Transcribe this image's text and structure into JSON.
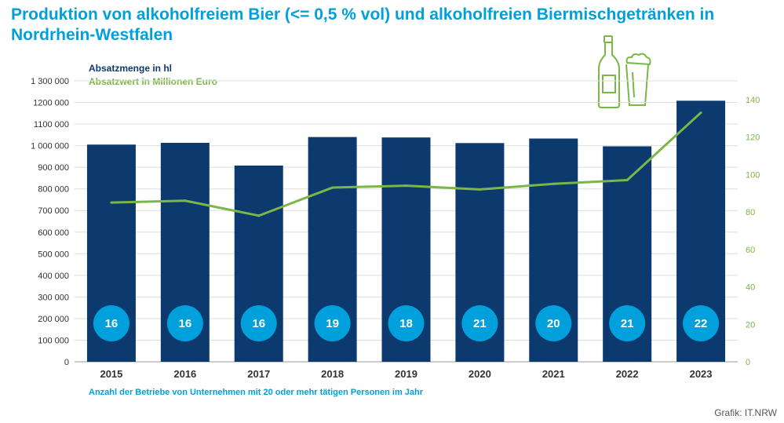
{
  "title": "Produktion von alkoholfreiem Bier (<= 0,5 % vol) und alkoholfreien Biermischgetränken in Nordrhein-Westfalen",
  "legend": {
    "volume": "Absatzmenge in hl",
    "value": "Absatzwert in Millionen Euro"
  },
  "footnote": "Anzahl der Betriebe von Unternehmen mit 20 oder mehr tätigen Personen im Jahr",
  "source": "Grafik: IT.NRW",
  "icons": [
    "bottle-icon",
    "beer-glass-icon"
  ],
  "colors": {
    "bar": "#0c3a6e",
    "line": "#7ab648",
    "badge": "#00a0dc",
    "title": "#00a0dc"
  },
  "chart_data": {
    "type": "bar",
    "categories": [
      "2015",
      "2016",
      "2017",
      "2018",
      "2019",
      "2020",
      "2021",
      "2022",
      "2023"
    ],
    "series": [
      {
        "name": "Absatzmenge in hl",
        "type": "bar",
        "axis": "left",
        "values": [
          1005000,
          1013000,
          908000,
          1040000,
          1038000,
          1012000,
          1033000,
          997000,
          1208000
        ]
      },
      {
        "name": "Absatzwert in Millionen Euro",
        "type": "line",
        "axis": "right",
        "values": [
          85,
          86,
          78,
          93,
          94,
          92,
          95,
          97,
          133
        ]
      }
    ],
    "establishments": [
      16,
      16,
      16,
      19,
      18,
      21,
      20,
      21,
      22
    ],
    "ylim": [
      0,
      1300000
    ],
    "y2lim": [
      0,
      150
    ],
    "yticks": [
      "0",
      "100 000",
      "200 000",
      "300 000",
      "400 000",
      "500 000",
      "600 000",
      "700 000",
      "800 000",
      "900 000",
      "1 000 000",
      "1100 000",
      "1200 000",
      "1 300 000"
    ],
    "y2ticks": [
      "0",
      "20",
      "40",
      "60",
      "80",
      "100",
      "120",
      "140"
    ],
    "grid": true
  }
}
